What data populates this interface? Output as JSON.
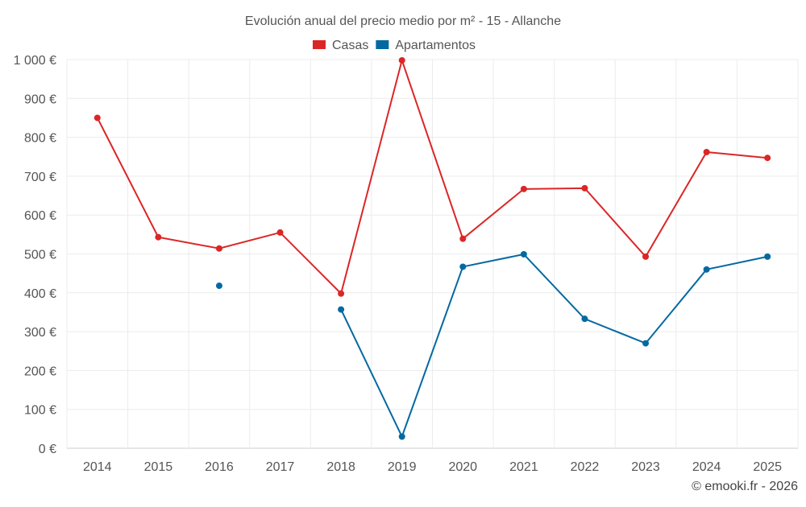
{
  "chart_data": {
    "type": "line",
    "title": "Evolución anual del precio medio por m² - 15 - Allanche",
    "categories": [
      "2014",
      "2015",
      "2016",
      "2017",
      "2018",
      "2019",
      "2020",
      "2021",
      "2022",
      "2023",
      "2024",
      "2025"
    ],
    "ylim": [
      0,
      1000
    ],
    "yticks": [
      0,
      100,
      200,
      300,
      400,
      500,
      600,
      700,
      800,
      900,
      1000
    ],
    "ytick_labels": [
      "0 €",
      "100 €",
      "200 €",
      "300 €",
      "400 €",
      "500 €",
      "600 €",
      "700 €",
      "800 €",
      "900 €",
      "1 000 €"
    ],
    "grid": true,
    "legend_position": "top-center",
    "series": [
      {
        "name": "Casas",
        "color": "#dc2626",
        "values": [
          850,
          543,
          514,
          555,
          398,
          998,
          539,
          667,
          669,
          493,
          762,
          747
        ]
      },
      {
        "name": "Apartamentos",
        "color": "#0369a1",
        "values": [
          null,
          null,
          418,
          null,
          357,
          30,
          467,
          499,
          333,
          270,
          460,
          493
        ]
      }
    ]
  },
  "credit": "© emooki.fr - 2026"
}
